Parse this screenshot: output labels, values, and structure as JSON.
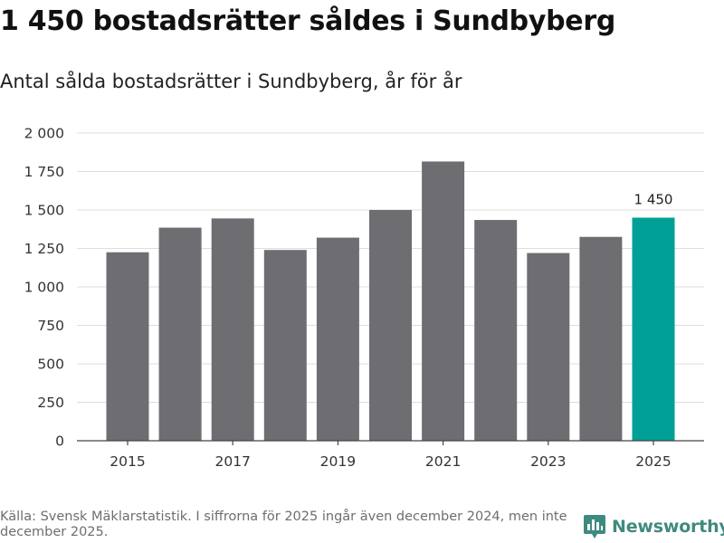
{
  "header": {
    "title": "1 450 bostadsrätter såldes i Sundbyberg",
    "subtitle": "Antal sålda bostadsrätter i Sundbyberg, år för år"
  },
  "footer": {
    "source": "Källa: Svensk Mäklarstatistik. I siffrorna för 2025 ingår även december 2024, men inte december 2025.",
    "logo_text": "Newsworthy"
  },
  "colors": {
    "bar": "#6e6d72",
    "highlight": "#00a096",
    "grid": "#dddddd",
    "axis": "#444444",
    "brand": "#3f8a7f"
  },
  "chart_data": {
    "type": "bar",
    "title": "1 450 bostadsrätter såldes i Sundbyberg",
    "subtitle": "Antal sålda bostadsrätter i Sundbyberg, år för år",
    "categories": [
      "2015",
      "2016",
      "2017",
      "2018",
      "2019",
      "2020",
      "2021",
      "2022",
      "2023",
      "2024",
      "2025"
    ],
    "values": [
      1225,
      1385,
      1445,
      1240,
      1320,
      1500,
      1815,
      1435,
      1220,
      1325,
      1450
    ],
    "x_tick_labels": [
      "2015",
      "2017",
      "2019",
      "2021",
      "2023",
      "2025"
    ],
    "y_ticks": [
      0,
      250,
      500,
      750,
      1000,
      1250,
      1500,
      1750,
      2000
    ],
    "y_tick_labels": [
      "0",
      "250",
      "500",
      "750",
      "1 000",
      "1 250",
      "1 500",
      "1 750",
      "2 000"
    ],
    "ylim": [
      0,
      2000
    ],
    "xlabel": "",
    "ylabel": "",
    "highlight_index": 10,
    "annotation": {
      "category": "2025",
      "text": "1 450"
    },
    "grid": true
  }
}
